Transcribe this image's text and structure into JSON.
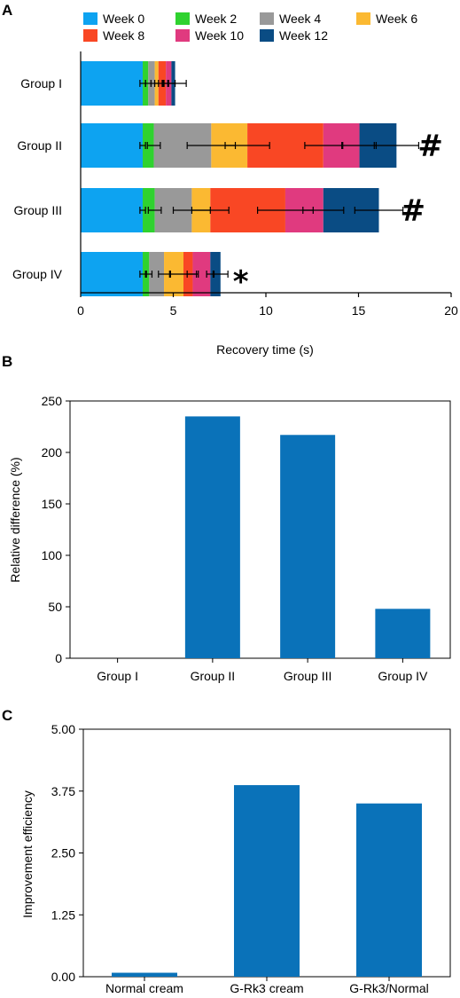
{
  "chart_data": [
    {
      "panel": "A",
      "type": "bar",
      "orientation": "horizontal",
      "stacked": true,
      "categories": [
        "Group I",
        "Group II",
        "Group III",
        "Group IV"
      ],
      "series": [
        {
          "name": "Week 0",
          "color": "#0da3f1",
          "values": [
            3.35,
            3.35,
            3.35,
            3.35
          ],
          "errors": [
            0.15,
            0.15,
            0.15,
            0.15
          ]
        },
        {
          "name": "Week 2",
          "color": "#2fd22f",
          "values": [
            0.3,
            0.6,
            0.65,
            0.35
          ],
          "errors": [
            0.15,
            0.35,
            0.35,
            0.15
          ]
        },
        {
          "name": "Week 4",
          "color": "#999999",
          "values": [
            0.35,
            3.1,
            2.0,
            0.8
          ],
          "errors": [
            0.2,
            1.3,
            1.0,
            0.3
          ]
        },
        {
          "name": "Week 6",
          "color": "#fbb932",
          "values": [
            0.2,
            1.95,
            1.0,
            1.05
          ],
          "errors": [
            0.2,
            1.2,
            1.0,
            0.7
          ]
        },
        {
          "name": "Week 8",
          "color": "#f94724",
          "values": [
            0.4,
            4.1,
            4.05,
            0.5
          ],
          "errors": [
            0.15,
            1.0,
            1.5,
            0.3
          ]
        },
        {
          "name": "Week 10",
          "color": "#e03a7f",
          "values": [
            0.3,
            1.95,
            2.05,
            0.95
          ],
          "errors": [
            0.2,
            0.9,
            1.1,
            0.2
          ]
        },
        {
          "name": "Week 12",
          "color": "#0a4c84",
          "values": [
            0.2,
            2.0,
            3.0,
            0.55
          ],
          "errors": [
            0.6,
            1.2,
            1.3,
            0.4
          ]
        }
      ],
      "annotations": [
        "",
        "#",
        "#",
        "*"
      ],
      "xlabel": "Recovery time (s)",
      "xlim": [
        0,
        20
      ],
      "xticks": [
        "0",
        "5",
        "10",
        "15",
        "20"
      ],
      "legend": "top"
    },
    {
      "panel": "B",
      "type": "bar",
      "categories": [
        "Group I",
        "Group II",
        "Group III",
        "Group IV"
      ],
      "values": [
        0,
        235,
        217,
        48
      ],
      "color": "#0a72b9",
      "ylabel": "Relative difference (%)",
      "ylim": [
        0,
        250
      ],
      "yticks": [
        "0",
        "50",
        "100",
        "150",
        "200",
        "250"
      ]
    },
    {
      "panel": "C",
      "type": "bar",
      "categories": [
        "Normal cream",
        "G-Rk3 cream",
        "G-Rk3/Normal"
      ],
      "values": [
        0.08,
        3.87,
        3.5
      ],
      "color": "#0a72b9",
      "ylabel": "Improvement efficiency",
      "ylim": [
        0,
        5
      ],
      "yticks": [
        "0.00",
        "1.25",
        "2.50",
        "3.75",
        "5.00"
      ]
    }
  ]
}
